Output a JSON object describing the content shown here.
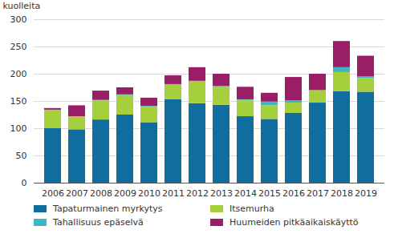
{
  "chart_data": {
    "type": "bar",
    "stacked": true,
    "grid": true,
    "legend": "bottom",
    "y_label": "kuolleita",
    "categories": [
      "2006",
      "2007",
      "2008",
      "2009",
      "2010",
      "2011",
      "2012",
      "2013",
      "2014",
      "2015",
      "2016",
      "2017",
      "2018",
      "2019"
    ],
    "series": [
      {
        "name": "Tapaturmainen myrkytys",
        "color": "#0f6e9f",
        "values": [
          100,
          98,
          116,
          125,
          111,
          153,
          146,
          143,
          122,
          117,
          128,
          147,
          168,
          167
        ]
      },
      {
        "name": "Itsemurha",
        "color": "#a5cf3b",
        "values": [
          33,
          24,
          35,
          36,
          29,
          27,
          40,
          33,
          30,
          25,
          19,
          23,
          35,
          25
        ]
      },
      {
        "name": "Tahallisuus epäselvä",
        "color": "#3bb8c4",
        "values": [
          1,
          0,
          1,
          1,
          1,
          1,
          1,
          2,
          1,
          7,
          4,
          0,
          9,
          3
        ]
      },
      {
        "name": "Huumeiden pitkäaikaiskäyttö",
        "color": "#991e66",
        "values": [
          3,
          20,
          17,
          13,
          15,
          16,
          25,
          22,
          23,
          16,
          43,
          30,
          48,
          38
        ]
      }
    ],
    "ylim": [
      0,
      300
    ],
    "yticks": [
      0,
      50,
      100,
      150,
      200,
      250,
      300
    ]
  }
}
